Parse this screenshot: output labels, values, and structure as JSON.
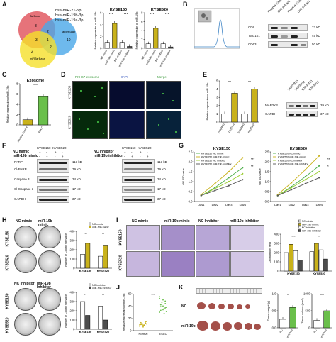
{
  "panels": {
    "a": "A",
    "b": "B",
    "c": "C",
    "d": "D",
    "e": "E",
    "f": "F",
    "g": "G",
    "h": "H",
    "i": "I",
    "j": "J",
    "k": "K"
  },
  "venn": {
    "circle1": "TarBase",
    "circle2": "TargetScan",
    "circle3": "miRTarBase",
    "mirs": [
      "hsa-miR-21-5p",
      "hsa-miR-19b-3p",
      "hsa-miR-19a-3p"
    ],
    "counts": [
      "8",
      "10",
      "2",
      "2",
      "3",
      "1",
      "2"
    ]
  },
  "panelA_bars": {
    "ylabel": "Relative expression of miR-19b",
    "charts": [
      {
        "title": "KYSE150",
        "categories": [
          "NC mimic",
          "miR-19b mimic",
          "NC inhibitor",
          "miR-19b inhibitor"
        ],
        "values": [
          1.0,
          4.2,
          1.0,
          0.3
        ],
        "ylim": [
          0,
          6
        ],
        "ticks": [
          "0",
          "2",
          "4",
          "6"
        ],
        "colors": [
          "#ffffff",
          "#c9b21b",
          "#ffffff",
          "#4d4d4d"
        ]
      },
      {
        "title": "KYSE520",
        "categories": [
          "NC mimic",
          "miR-19b mimic",
          "NC inhibitor",
          "miR-19b inhibitor"
        ],
        "values": [
          1.0,
          4.5,
          1.0,
          0.3
        ],
        "ylim": [
          0,
          8
        ],
        "ticks": [
          "0",
          "2",
          "4",
          "6",
          "8"
        ],
        "colors": [
          "#ffffff",
          "#c9b21b",
          "#ffffff",
          "#4d4d4d"
        ]
      }
    ],
    "sig": [
      "***",
      "***",
      "***",
      "***"
    ]
  },
  "panelB": {
    "blot_labels": [
      "CD9",
      "TSG101",
      "CD63"
    ],
    "kd": [
      "23 kD",
      "45 kD",
      "50 kD"
    ],
    "cols": [
      "Plasma Exo(ESCC)",
      "Cell extract",
      "Plasma Exo(Healthy)",
      "Cell extract"
    ]
  },
  "panelC": {
    "title": "Exosome",
    "ylabel": "Relative expression of miR-19b",
    "categories": [
      "Healthy Control",
      "ESCC"
    ],
    "values": [
      1.0,
      5.5
    ],
    "ylim": [
      0,
      8
    ],
    "ticks": [
      "0",
      "2",
      "4",
      "6",
      "8"
    ],
    "colors": [
      "#c9b21b",
      "#6abf4b"
    ],
    "sig": "***"
  },
  "panelD": {
    "headers": [
      "PKH67-exosome",
      "DAPI",
      "Merge"
    ],
    "rows": [
      "KYSE150",
      "KYSE520"
    ]
  },
  "panelE": {
    "ylabel": "Relative expression of miR-19b",
    "categories": [
      "150(PBS)",
      "150(Exo)",
      "520(PBS)",
      "520(Exo)"
    ],
    "values": [
      1.0,
      3.5,
      1.0,
      4.0
    ],
    "ylim": [
      0,
      5
    ],
    "ticks": [
      "0",
      "1",
      "2",
      "3",
      "4",
      "5"
    ],
    "colors": [
      "#ffffff",
      "#c9b21b",
      "#ffffff",
      "#c9b21b"
    ],
    "sig": [
      "**",
      "**"
    ],
    "blot_labels": [
      "MAP2K3",
      "GAPDH"
    ],
    "kd": [
      "39 kD",
      "37 kD"
    ],
    "cols": [
      "150(PBS)",
      "150(Exo)",
      "520(PBS)",
      "520(Exo)"
    ]
  },
  "panelF": {
    "left": {
      "cond1": "NC mimic",
      "cond2": "miR-19b mimic",
      "signs1": [
        "+",
        "-",
        "+",
        "-"
      ],
      "signs2": [
        "-",
        "+",
        "-",
        "+"
      ],
      "cells": [
        "KYSE150",
        "KYSE520"
      ],
      "labels": [
        "PARP",
        "Cl-PARP",
        "Caspase 3",
        "Cl-Caspase 3",
        "GAPDH"
      ],
      "kd": [
        "113 kD",
        "79 kD",
        "34 kD",
        "17 kD",
        "37 kD"
      ]
    },
    "right": {
      "cond1": "NC inhibitor",
      "cond2": "miR-19b inhibitor",
      "signs1": [
        "+",
        "-",
        "+",
        "-"
      ],
      "signs2": [
        "-",
        "+",
        "-",
        "+"
      ],
      "cells": [
        "KYSE150",
        "KYSE520"
      ],
      "kd": [
        "113 kD",
        "79 kD",
        "34 kD",
        "17 kD",
        "37 kD"
      ]
    }
  },
  "panelG": {
    "charts": [
      {
        "title": "KYSE150",
        "ylabel": "OD 450 value",
        "x": [
          "Day1",
          "Day2",
          "Day3",
          "Day4"
        ],
        "ylim": [
          0,
          2.5
        ],
        "ticks": [
          "0.0",
          "0.5",
          "1.0",
          "1.5",
          "2.0",
          "2.5"
        ],
        "series": [
          {
            "name": "KYSE150 NC mimic",
            "values": [
              0.3,
              0.7,
              1.2,
              1.7
            ],
            "color": "#4daf4a"
          },
          {
            "name": "KYSE150 miR-19b mimic",
            "values": [
              0.35,
              0.9,
              1.5,
              2.2
            ],
            "color": "#c9b21b"
          },
          {
            "name": "KYSE150 NC inhibitor",
            "values": [
              0.3,
              0.65,
              1.0,
              1.4
            ],
            "color": "#9acd32"
          },
          {
            "name": "KYSE150 miR-19b inhibitor",
            "values": [
              0.3,
              0.55,
              0.8,
              1.1
            ],
            "color": "#555555"
          }
        ],
        "sig": [
          "***",
          "**"
        ]
      },
      {
        "title": "KYSE520",
        "ylabel": "OD 450 value",
        "x": [
          "Day1",
          "Day2",
          "Day3",
          "Day4"
        ],
        "ylim": [
          0,
          2.5
        ],
        "ticks": [
          "0.0",
          "0.5",
          "1.0",
          "1.5",
          "2.0",
          "2.5"
        ],
        "series": [
          {
            "name": "KYSE520 NC mimic",
            "values": [
              0.3,
              0.75,
              1.25,
              1.8
            ],
            "color": "#4daf4a"
          },
          {
            "name": "KYSE520 miR-19b mimic",
            "values": [
              0.35,
              0.95,
              1.6,
              2.3
            ],
            "color": "#c9b21b"
          },
          {
            "name": "KYSE520 NC inhibitor",
            "values": [
              0.3,
              0.7,
              1.1,
              1.5
            ],
            "color": "#9acd32"
          },
          {
            "name": "KYSE520 miR-19b inhibitor",
            "values": [
              0.3,
              0.6,
              0.9,
              1.2
            ],
            "color": "#555555"
          }
        ],
        "sig": [
          "**",
          "*"
        ]
      }
    ]
  },
  "panelH": {
    "top": {
      "headers": [
        "NC mimic",
        "miR-19b mimic"
      ],
      "rows": [
        "KYSE150",
        "KYSE520"
      ],
      "ylabel": "Number of Colony formation",
      "legend": [
        "NC mimic",
        "miR-19b mimic"
      ],
      "categories": [
        "KYSE150",
        "KYSE520"
      ],
      "values": [
        [
          150,
          270
        ],
        [
          130,
          250
        ]
      ],
      "ylim": [
        0,
        400
      ],
      "ticks": [
        "0",
        "100",
        "200",
        "300",
        "400"
      ],
      "sig": [
        "***",
        "**"
      ]
    },
    "bottom": {
      "headers": [
        "NC Inhibitor",
        "miR-19b Inhibitor"
      ],
      "rows": [
        "KYSE150",
        "KYSE520"
      ],
      "ylabel": "Number of Colony formation",
      "legend": [
        "NC inhibitor",
        "miR-19b inhibitor"
      ],
      "categories": [
        "KYSE150",
        "KYSE520"
      ],
      "values": [
        [
          300,
          150
        ],
        [
          250,
          100
        ]
      ],
      "ylim": [
        0,
        400
      ],
      "ticks": [
        "0",
        "100",
        "200",
        "300",
        "400"
      ],
      "sig": [
        "**",
        "**"
      ]
    }
  },
  "panelI": {
    "headers": [
      "NC mimic",
      "miR-19b mimic",
      "NC Inhibitor",
      "miR-19b Inhibitor"
    ],
    "rows": [
      "KYSE150",
      "KYSE520"
    ],
    "ylabel": "Cell number/ field",
    "legend": [
      "NC mimic",
      "miR-19b mimic",
      "NC inhibitor",
      "miR-19b inhibitor"
    ],
    "categories": [
      "KYSE150",
      "KYSE520"
    ],
    "values": [
      [
        200,
        290,
        220,
        120
      ],
      [
        210,
        300,
        230,
        130
      ]
    ],
    "ylim": [
      0,
      400
    ],
    "ticks": [
      "0",
      "100",
      "200",
      "300",
      "400"
    ],
    "colors": [
      "#ffffff",
      "#c9b21b",
      "#ffffff",
      "#4d4d4d"
    ],
    "sig": [
      "***",
      "***",
      "**",
      "**"
    ]
  },
  "panelJ": {
    "ylabel": "Relative expression of miR-19b",
    "categories": [
      "Normal",
      "ESCC"
    ],
    "ylim": [
      0,
      60
    ],
    "ticks": [
      "0",
      "20",
      "40",
      "60"
    ],
    "sig": "***",
    "colors": [
      "#c9b21b",
      "#6abf4b"
    ]
  },
  "panelK": {
    "rows": [
      "NC",
      "miR-19b"
    ],
    "charts": [
      {
        "ylabel": "Tumor weight (g)",
        "categories": [
          "NC",
          "miR-19b"
        ],
        "values": [
          0.25,
          0.6
        ],
        "ylim": [
          0,
          1.0
        ],
        "ticks": [
          "0.0",
          "0.5",
          "1.0"
        ],
        "sig": "*"
      },
      {
        "ylabel": "Tumor volume (mm³)",
        "categories": [
          "NC",
          "miR-19b"
        ],
        "values": [
          220,
          500
        ],
        "ylim": [
          0,
          1000
        ],
        "ticks": [
          "0",
          "500",
          "1000"
        ],
        "sig": "***"
      }
    ],
    "colors": [
      "#ffffff",
      "#6abf4b"
    ]
  }
}
